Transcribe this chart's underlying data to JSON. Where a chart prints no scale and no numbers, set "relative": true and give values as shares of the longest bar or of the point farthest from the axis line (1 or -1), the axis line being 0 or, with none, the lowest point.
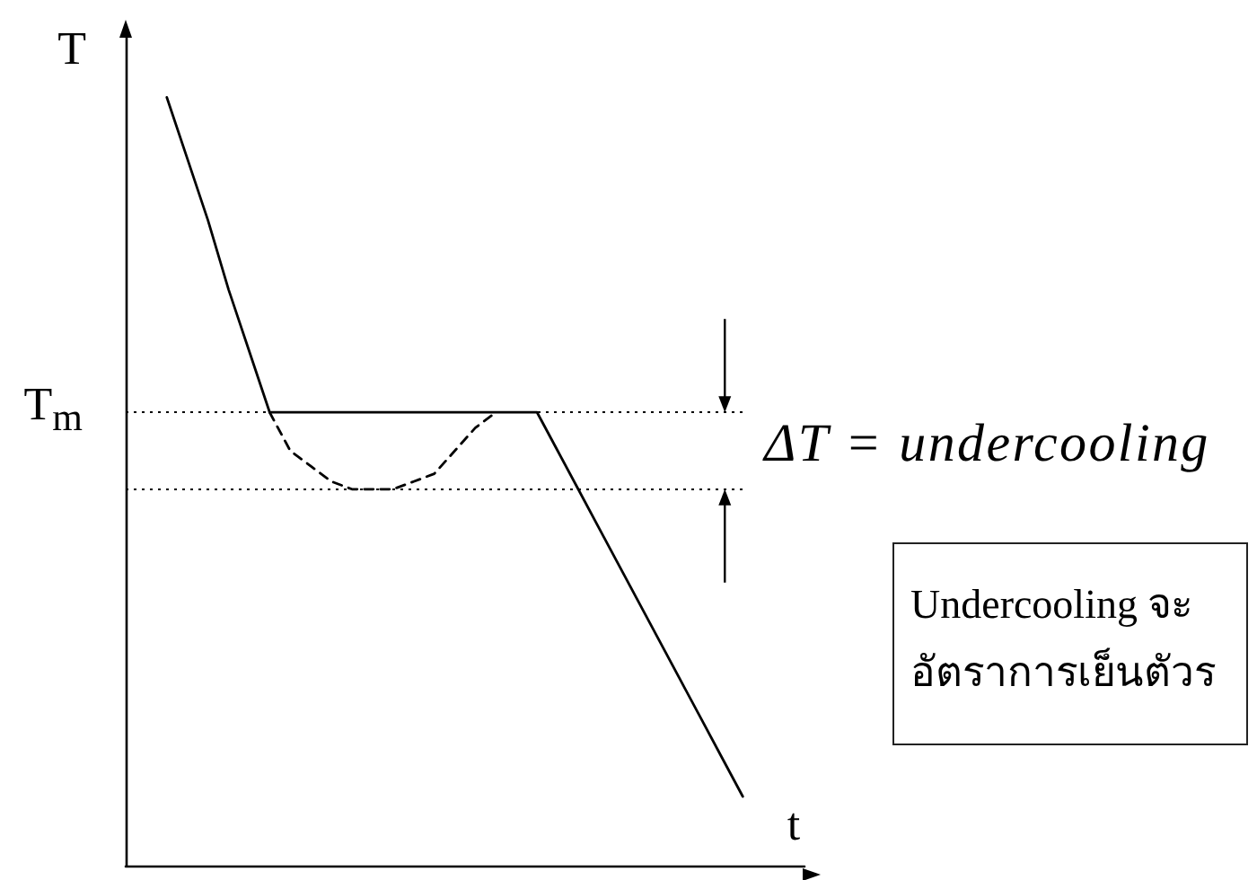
{
  "chart_data": {
    "type": "line",
    "xlabel": "t",
    "ylabel": "T",
    "relative": true,
    "marker": "none",
    "categories": [
      null,
      null,
      null,
      null,
      null,
      null,
      null,
      null,
      null,
      null,
      null,
      null,
      null,
      null,
      null,
      null,
      null,
      null,
      null,
      null,
      null,
      null,
      null,
      null,
      null,
      null,
      null,
      null,
      null,
      null,
      null,
      null,
      null,
      null
    ],
    "series": [
      {
        "color": "#000000",
        "line_style": "solid",
        "values": [
          null,
          null,
          1,
          0.92,
          0.84,
          0.75,
          0.67,
          0.59,
          0.59,
          0.59,
          0.59,
          0.59,
          0.59,
          0.59,
          0.59,
          0.59,
          0.59,
          0.59,
          0.59,
          0.59,
          0.59,
          0.54,
          0.49,
          0.44,
          0.39,
          0.34,
          0.29,
          0.24,
          0.19,
          0.14,
          0.09,
          null,
          null,
          null
        ]
      },
      {
        "color": "#000000",
        "line_style": "dashed",
        "values": [
          null,
          null,
          null,
          null,
          null,
          null,
          null,
          0.59,
          0.54,
          0.52,
          0.5,
          0.49,
          0.49,
          0.49,
          0.5,
          0.51,
          0.54,
          0.57,
          0.59,
          null,
          null,
          null,
          null,
          null,
          null,
          null,
          null,
          null,
          null,
          null,
          null,
          null,
          null,
          null
        ]
      }
    ],
    "ref_lines": [
      {
        "axis": "y",
        "value": 0.59,
        "label": "T$_{m}$",
        "line_style": "dotted"
      },
      {
        "axis": "y",
        "value": 0.49,
        "line_style": "dotted"
      }
    ],
    "annotations": [
      "ΔT = undercooling",
      "Undercooling จะ\nอัตราการเย็นตัวร"
    ]
  }
}
